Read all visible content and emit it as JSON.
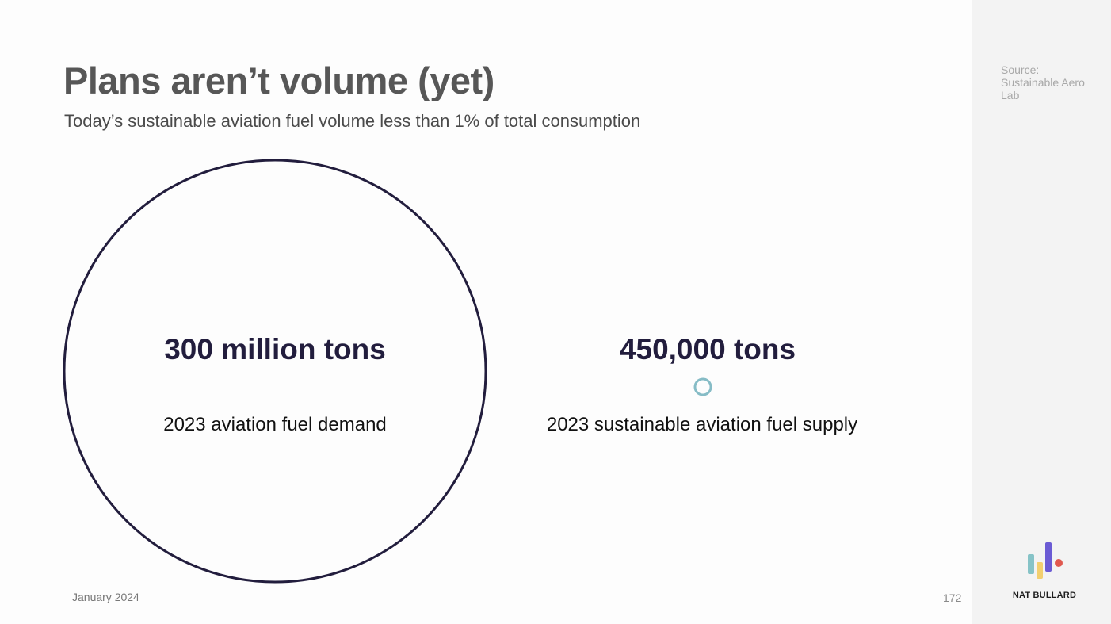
{
  "title": "Plans aren’t volume (yet)",
  "subtitle": "Today’s sustainable aviation fuel volume less than 1% of total consumption",
  "source": "Source: Sustainable Aero Lab",
  "footer": {
    "date": "January 2024",
    "page_number": "172",
    "brand": "NAT BULLARD"
  },
  "colors": {
    "demand_circle": "#221d3d",
    "supply_circle": "#86bcc6",
    "value_text": "#221d3d",
    "logo_teal": "#86c3c7",
    "logo_yellow": "#f2cf6f",
    "logo_purple": "#6b5bd4",
    "logo_red": "#e0584f"
  },
  "chart_data": {
    "type": "bubble",
    "unit": "tons",
    "items": [
      {
        "value": 300000000,
        "value_label": "300 million tons",
        "label": "2023 aviation fuel demand"
      },
      {
        "value": 450000,
        "value_label": "450,000 tons",
        "label": "2023 sustainable aviation fuel supply"
      }
    ]
  }
}
